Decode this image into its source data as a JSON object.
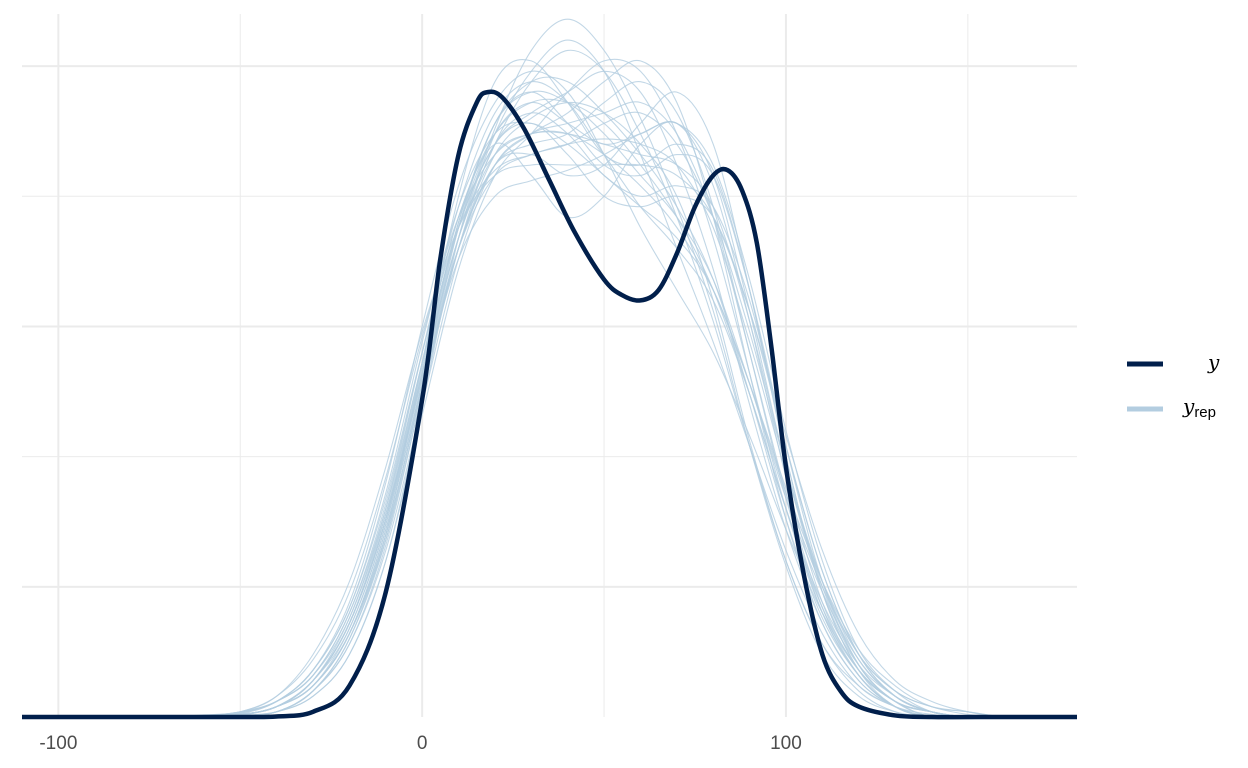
{
  "chart_data": {
    "type": "line",
    "title": "",
    "xlabel": "",
    "ylabel": "",
    "xlim": [
      -110,
      180
    ],
    "ylim": [
      0,
      0.0135
    ],
    "x_ticks": [
      -100,
      0,
      100
    ],
    "x_tick_labels": [
      "-100",
      "0",
      "100"
    ],
    "grid": true,
    "legend_position": "right",
    "colors": {
      "y": "#011f4b",
      "y_rep": "#b3cde0",
      "grid": "#ebebeb"
    },
    "series": [
      {
        "name": "y",
        "style": "thick-dark",
        "x": [
          -110,
          -80,
          -50,
          -40,
          -30,
          -20,
          -10,
          0,
          5,
          10,
          15,
          18,
          22,
          28,
          35,
          42,
          50,
          55,
          60,
          65,
          70,
          75,
          80,
          84,
          88,
          92,
          96,
          100,
          105,
          110,
          115,
          120,
          130,
          140,
          160,
          180
        ],
        "y": [
          0,
          0,
          0,
          1e-05,
          0.0001,
          0.0006,
          0.0024,
          0.0061,
          0.0088,
          0.0108,
          0.0118,
          0.012,
          0.0119,
          0.0113,
          0.0103,
          0.0093,
          0.0084,
          0.0081,
          0.008,
          0.0082,
          0.0089,
          0.0098,
          0.0104,
          0.0105,
          0.0101,
          0.0091,
          0.0071,
          0.0048,
          0.0027,
          0.0012,
          0.0005,
          0.0002,
          3e-05,
          0,
          0,
          0
        ]
      }
    ],
    "replicates": {
      "name": "y_rep",
      "x": [
        -110,
        -100,
        -90,
        -80,
        -70,
        -60,
        -50,
        -40,
        -30,
        -20,
        -10,
        0,
        10,
        20,
        30,
        40,
        50,
        60,
        70,
        80,
        90,
        100,
        110,
        120,
        130,
        140,
        150,
        160,
        170,
        180
      ],
      "draws": [
        [
          0,
          0,
          0,
          0,
          0,
          1e-05,
          4e-05,
          0.0002,
          0.0006,
          0.0016,
          0.0035,
          0.0063,
          0.009,
          0.0108,
          0.0115,
          0.0118,
          0.0116,
          0.011,
          0.01,
          0.008,
          0.0053,
          0.003,
          0.0014,
          0.0006,
          0.0002,
          5e-05,
          0,
          0,
          0,
          0
        ],
        [
          0,
          0,
          0,
          0,
          0,
          2e-05,
          0.0001,
          0.0003,
          0.0008,
          0.0019,
          0.0039,
          0.0065,
          0.0092,
          0.011,
          0.0122,
          0.0128,
          0.0124,
          0.0112,
          0.0096,
          0.0076,
          0.0052,
          0.003,
          0.0014,
          0.0005,
          0.0001,
          0,
          0,
          0,
          0,
          0
        ],
        [
          0,
          0,
          0,
          0,
          0,
          0,
          3e-05,
          0.0001,
          0.0004,
          0.0012,
          0.003,
          0.006,
          0.0092,
          0.0113,
          0.0128,
          0.0134,
          0.0128,
          0.0115,
          0.0098,
          0.0078,
          0.0052,
          0.0029,
          0.0012,
          0.0004,
          0.0001,
          0,
          0,
          0,
          0,
          0
        ],
        [
          0,
          0,
          0,
          0,
          0,
          1e-05,
          5e-05,
          0.0002,
          0.0007,
          0.0018,
          0.0038,
          0.0066,
          0.0094,
          0.0112,
          0.0118,
          0.0114,
          0.011,
          0.0112,
          0.0114,
          0.0104,
          0.0078,
          0.0048,
          0.0024,
          0.001,
          0.0003,
          0.0001,
          0,
          0,
          0,
          0
        ],
        [
          0,
          0,
          0,
          0,
          0,
          0,
          2e-05,
          0.0001,
          0.0005,
          0.0015,
          0.0035,
          0.0068,
          0.01,
          0.0122,
          0.0126,
          0.0118,
          0.0108,
          0.0106,
          0.011,
          0.0105,
          0.0082,
          0.005,
          0.0024,
          0.0009,
          0.0002,
          0,
          0,
          0,
          0,
          0
        ],
        [
          0,
          0,
          0,
          0,
          0,
          2e-05,
          0.0001,
          0.0003,
          0.0009,
          0.0021,
          0.0042,
          0.007,
          0.0094,
          0.0105,
          0.0108,
          0.011,
          0.0111,
          0.011,
          0.0106,
          0.0094,
          0.0072,
          0.0047,
          0.0026,
          0.0012,
          0.0005,
          0.0002,
          5e-05,
          0,
          0,
          0
        ],
        [
          0,
          0,
          0,
          0,
          0,
          0,
          3e-05,
          0.0002,
          0.0006,
          0.0016,
          0.0036,
          0.0064,
          0.009,
          0.0106,
          0.0112,
          0.0116,
          0.0122,
          0.0126,
          0.0118,
          0.0096,
          0.0066,
          0.0038,
          0.0018,
          0.0007,
          0.0002,
          0,
          0,
          0,
          0,
          0
        ],
        [
          0,
          0,
          0,
          0,
          0,
          1e-05,
          5e-05,
          0.0002,
          0.0007,
          0.0017,
          0.0037,
          0.0066,
          0.0095,
          0.0114,
          0.012,
          0.0118,
          0.0112,
          0.0104,
          0.0096,
          0.0084,
          0.0064,
          0.0042,
          0.0024,
          0.0011,
          0.0004,
          0.0001,
          0,
          0,
          0,
          0
        ],
        [
          0,
          0,
          0,
          0,
          0,
          1e-05,
          4e-05,
          0.0002,
          0.0006,
          0.0016,
          0.0036,
          0.0064,
          0.0088,
          0.01,
          0.0103,
          0.0105,
          0.0108,
          0.0112,
          0.0114,
          0.0106,
          0.0084,
          0.0055,
          0.003,
          0.0013,
          0.0005,
          0.0001,
          0,
          0,
          0,
          0
        ],
        [
          0,
          0,
          0,
          0,
          0,
          1e-05,
          6e-05,
          0.0003,
          0.0009,
          0.0022,
          0.0045,
          0.0075,
          0.0102,
          0.0118,
          0.0124,
          0.012,
          0.0108,
          0.0094,
          0.0082,
          0.007,
          0.0054,
          0.0036,
          0.002,
          0.0009,
          0.0003,
          0.0001,
          0,
          0,
          0,
          0
        ],
        [
          0,
          0,
          0,
          0,
          0,
          0,
          2e-05,
          0.0001,
          0.0004,
          0.0012,
          0.003,
          0.0058,
          0.0086,
          0.0104,
          0.0112,
          0.012,
          0.0126,
          0.0124,
          0.0112,
          0.0092,
          0.0066,
          0.004,
          0.002,
          0.0008,
          0.0002,
          0,
          0,
          0,
          0,
          0
        ],
        [
          0,
          0,
          0,
          0,
          1e-05,
          3e-05,
          0.0001,
          0.0004,
          0.0011,
          0.0024,
          0.0046,
          0.0073,
          0.0096,
          0.0108,
          0.0112,
          0.0112,
          0.0108,
          0.0102,
          0.0094,
          0.0082,
          0.0064,
          0.0044,
          0.0026,
          0.0013,
          0.0006,
          0.0002,
          0.0001,
          0,
          0,
          0
        ],
        [
          0,
          0,
          0,
          0,
          0,
          1e-05,
          5e-05,
          0.0002,
          0.0007,
          0.0018,
          0.0038,
          0.0068,
          0.0096,
          0.011,
          0.0104,
          0.0096,
          0.01,
          0.011,
          0.0114,
          0.0102,
          0.0076,
          0.0046,
          0.0022,
          0.0009,
          0.0003,
          0.0001,
          0,
          0,
          0,
          0
        ],
        [
          0,
          0,
          0,
          0,
          0,
          2e-05,
          8e-05,
          0.0003,
          0.0008,
          0.002,
          0.004,
          0.0068,
          0.0094,
          0.011,
          0.0114,
          0.0108,
          0.01,
          0.0098,
          0.01,
          0.0096,
          0.0078,
          0.0052,
          0.0028,
          0.0012,
          0.0004,
          0.0001,
          0,
          0,
          0,
          0
        ],
        [
          0,
          0,
          0,
          0,
          0,
          0,
          3e-05,
          0.0001,
          0.0005,
          0.0014,
          0.0033,
          0.0062,
          0.009,
          0.0106,
          0.0108,
          0.0104,
          0.0106,
          0.0114,
          0.012,
          0.011,
          0.0082,
          0.005,
          0.0024,
          0.0009,
          0.0003,
          0,
          0,
          0,
          0,
          0
        ],
        [
          0,
          0,
          0,
          0,
          0,
          1e-05,
          5e-05,
          0.0002,
          0.0007,
          0.0018,
          0.0038,
          0.0066,
          0.0092,
          0.0112,
          0.0124,
          0.013,
          0.0124,
          0.0108,
          0.009,
          0.0072,
          0.0052,
          0.0032,
          0.0016,
          0.0006,
          0.0002,
          0,
          0,
          0,
          0,
          0
        ],
        [
          0,
          0,
          0,
          0,
          0,
          1e-05,
          4e-05,
          0.0002,
          0.0006,
          0.0017,
          0.0037,
          0.0065,
          0.009,
          0.0104,
          0.0108,
          0.011,
          0.0114,
          0.0116,
          0.011,
          0.0096,
          0.0074,
          0.0048,
          0.0026,
          0.0011,
          0.0004,
          0.0001,
          0,
          0,
          0,
          0
        ],
        [
          0,
          0,
          0,
          0,
          0,
          2e-05,
          8e-05,
          0.0003,
          0.0009,
          0.0021,
          0.0043,
          0.0072,
          0.0098,
          0.0112,
          0.0114,
          0.011,
          0.0104,
          0.0098,
          0.0092,
          0.0082,
          0.0064,
          0.0043,
          0.0025,
          0.0012,
          0.0005,
          0.0002,
          0.0001,
          0,
          0,
          0
        ],
        [
          0,
          0,
          0,
          0,
          0,
          0,
          3e-05,
          0.0001,
          0.0005,
          0.0014,
          0.0032,
          0.006,
          0.0088,
          0.0106,
          0.0112,
          0.0114,
          0.0116,
          0.0118,
          0.0112,
          0.0096,
          0.007,
          0.0043,
          0.0021,
          0.0008,
          0.0002,
          0,
          0,
          0,
          0,
          0
        ],
        [
          0,
          0,
          0,
          0,
          1e-05,
          4e-05,
          0.0001,
          0.0004,
          0.0012,
          0.0026,
          0.0048,
          0.0074,
          0.0094,
          0.0104,
          0.0106,
          0.0106,
          0.0106,
          0.0106,
          0.0104,
          0.0096,
          0.0078,
          0.0054,
          0.0032,
          0.0016,
          0.0007,
          0.0003,
          0.0001,
          0,
          0,
          0
        ],
        [
          0,
          0,
          0,
          0,
          0,
          1e-05,
          4e-05,
          0.0002,
          0.0007,
          0.0018,
          0.0038,
          0.0067,
          0.0095,
          0.0114,
          0.0122,
          0.0122,
          0.0116,
          0.0108,
          0.0098,
          0.0084,
          0.0062,
          0.0038,
          0.0019,
          0.0008,
          0.0002,
          0,
          0,
          0,
          0,
          0
        ],
        [
          0,
          0,
          0,
          0,
          0,
          0,
          3e-05,
          0.0002,
          0.0006,
          0.0016,
          0.0034,
          0.0062,
          0.009,
          0.011,
          0.0116,
          0.0112,
          0.0104,
          0.01,
          0.0102,
          0.0098,
          0.008,
          0.0052,
          0.0028,
          0.0012,
          0.0004,
          0.0001,
          0,
          0,
          0,
          0
        ],
        [
          0,
          0,
          0,
          0,
          0,
          1e-05,
          5e-05,
          0.0002,
          0.0007,
          0.0019,
          0.004,
          0.007,
          0.0098,
          0.0116,
          0.0122,
          0.0118,
          0.0108,
          0.0098,
          0.009,
          0.008,
          0.0062,
          0.004,
          0.0021,
          0.0009,
          0.0003,
          0.0001,
          0,
          0,
          0,
          0
        ],
        [
          0,
          0,
          0,
          0,
          0,
          1e-05,
          4e-05,
          0.0002,
          0.0006,
          0.0016,
          0.0035,
          0.0063,
          0.009,
          0.0106,
          0.011,
          0.0112,
          0.0118,
          0.0122,
          0.0116,
          0.0098,
          0.007,
          0.0042,
          0.002,
          0.0008,
          0.0002,
          0,
          0,
          0,
          0,
          0
        ],
        [
          0,
          0,
          0,
          0,
          0,
          2e-05,
          7e-05,
          0.0003,
          0.0008,
          0.002,
          0.0041,
          0.007,
          0.0096,
          0.0112,
          0.0118,
          0.0118,
          0.0114,
          0.0106,
          0.0096,
          0.0082,
          0.0062,
          0.004,
          0.0022,
          0.001,
          0.0004,
          0.0001,
          0,
          0,
          0,
          0
        ],
        [
          0,
          0,
          0,
          0,
          0,
          0,
          3e-05,
          0.0001,
          0.0005,
          0.0015,
          0.0034,
          0.0064,
          0.0094,
          0.0114,
          0.012,
          0.0114,
          0.0106,
          0.0104,
          0.0108,
          0.0104,
          0.0082,
          0.0052,
          0.0026,
          0.001,
          0.0003,
          0,
          0,
          0,
          0,
          0
        ],
        [
          0,
          0,
          0,
          0,
          0,
          1e-05,
          5e-05,
          0.0002,
          0.0007,
          0.0018,
          0.0039,
          0.0068,
          0.0094,
          0.011,
          0.0116,
          0.012,
          0.0124,
          0.012,
          0.0106,
          0.0086,
          0.006,
          0.0036,
          0.0018,
          0.0007,
          0.0002,
          0,
          0,
          0,
          0,
          0
        ],
        [
          0,
          0,
          0,
          0,
          0,
          1e-05,
          5e-05,
          0.0002,
          0.0007,
          0.0018,
          0.0038,
          0.0066,
          0.0092,
          0.0108,
          0.0112,
          0.0112,
          0.011,
          0.0108,
          0.0106,
          0.0098,
          0.0076,
          0.0048,
          0.0025,
          0.001,
          0.0003,
          0.0001,
          0,
          0,
          0,
          0
        ]
      ]
    }
  },
  "legend": {
    "items": [
      {
        "symbol": "y",
        "color": "#011f4b"
      },
      {
        "symbol": "y",
        "subscript": "rep",
        "color": "#b3cde0"
      }
    ]
  }
}
